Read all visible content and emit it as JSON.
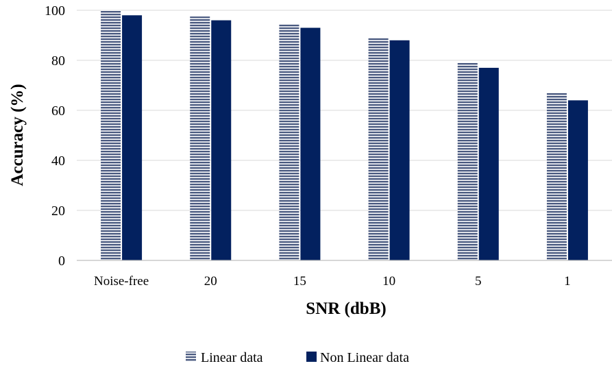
{
  "chart_data": {
    "type": "bar",
    "title": "",
    "xlabel": "SNR (dbB)",
    "ylabel": "Accuracy (%)",
    "categories": [
      "Noise-free",
      "20",
      "15",
      "10",
      "5",
      "1"
    ],
    "series": [
      {
        "name": "Linear data",
        "values": [
          100,
          97.5,
          94.5,
          89,
          79,
          67
        ],
        "color": "#4a5a80",
        "pattern": "horizontal-stripes"
      },
      {
        "name": "Non Linear data",
        "values": [
          98,
          96,
          93,
          88,
          77,
          64
        ],
        "color": "#03215f",
        "pattern": "solid"
      }
    ],
    "ylim": [
      0,
      100
    ],
    "yticks": [
      0,
      20,
      40,
      60,
      80,
      100
    ],
    "grid": true,
    "legend": "bottom-center"
  }
}
